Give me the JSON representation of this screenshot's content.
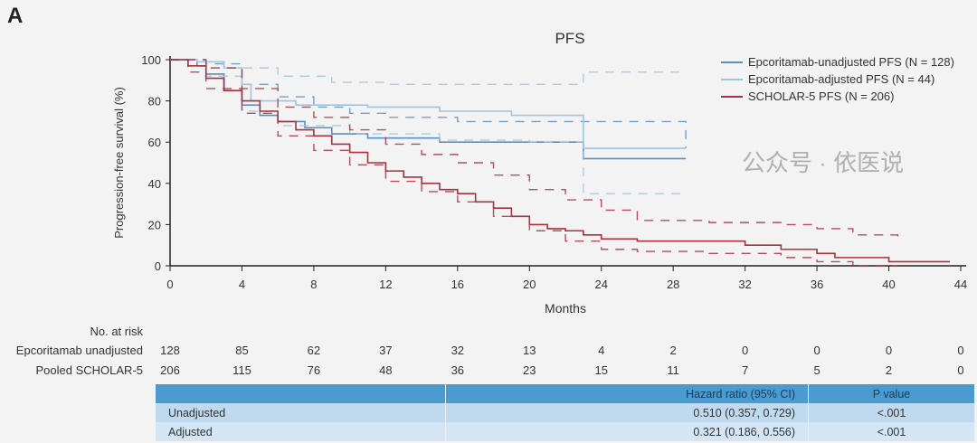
{
  "panel_label": "A",
  "chart_data": {
    "type": "line",
    "title": "PFS",
    "xlabel": "Months",
    "ylabel": "Progression-free survival (%)",
    "xlim": [
      0,
      44
    ],
    "ylim": [
      0,
      100
    ],
    "xticks": [
      0,
      4,
      8,
      12,
      16,
      20,
      24,
      28,
      32,
      36,
      40,
      44
    ],
    "yticks": [
      0,
      20,
      40,
      60,
      80,
      100
    ],
    "legend_position": "top-right",
    "series": [
      {
        "name": "Epcoritamab-unadjusted PFS (N = 128)",
        "color": "#5b8fc0",
        "x": [
          0,
          1.5,
          2,
          3,
          4,
          5,
          6,
          7.5,
          9,
          11,
          15,
          23,
          28.7
        ],
        "y": [
          100,
          97,
          93,
          85,
          78,
          73,
          70,
          67,
          64,
          62,
          60,
          52,
          52
        ],
        "ci_upper": {
          "x": [
            0,
            2,
            4,
            6,
            8,
            10,
            12,
            16,
            23,
            28.7
          ],
          "y": [
            100,
            98,
            88,
            82,
            77,
            74,
            72,
            70,
            70,
            57
          ]
        },
        "ci_lower": null
      },
      {
        "name": "Epcoritamab-adjusted PFS (N = 44)",
        "color": "#9fc4df",
        "x": [
          0,
          1.5,
          3,
          4,
          4.5,
          7,
          11,
          15,
          19,
          23,
          28.7
        ],
        "y": [
          100,
          99,
          96,
          88,
          80,
          78,
          77,
          75,
          73,
          57,
          57
        ],
        "ci_upper": {
          "x": [
            0,
            2,
            3,
            6,
            9,
            12,
            23,
            28.7
          ],
          "y": [
            100,
            99,
            96,
            92,
            89,
            88,
            94,
            94
          ]
        },
        "ci_lower": {
          "x": [
            0,
            2,
            4,
            6,
            10,
            15,
            20,
            23,
            28.7
          ],
          "y": [
            100,
            92,
            75,
            68,
            64,
            61,
            60,
            35,
            35
          ]
        }
      },
      {
        "name": "SCHOLAR-5 PFS (N = 206)",
        "color": "#a8323e",
        "x": [
          0,
          1,
          2,
          3,
          4,
          5,
          6,
          7,
          8,
          9,
          10,
          11,
          12,
          13,
          14,
          15,
          16,
          17,
          18,
          19,
          20,
          21,
          22,
          23,
          24,
          26,
          30,
          32,
          34,
          36,
          37,
          40,
          43.4
        ],
        "y": [
          100,
          97,
          91,
          85,
          80,
          75,
          70,
          66,
          63,
          59,
          55,
          50,
          46,
          43,
          40,
          37,
          35,
          31,
          28,
          24,
          20,
          18,
          17,
          15,
          13,
          12,
          12,
          10,
          8,
          6,
          4,
          2,
          2
        ],
        "ci_upper": {
          "x": [
            0,
            1,
            2,
            4,
            6,
            8,
            10,
            12,
            14,
            16,
            18,
            20,
            22,
            24,
            26,
            30,
            34,
            36,
            38,
            40.5
          ],
          "y": [
            100,
            100,
            96,
            86,
            77,
            72,
            66,
            59,
            54,
            50,
            44,
            37,
            32,
            27,
            22,
            21,
            20,
            18,
            15,
            12
          ]
        },
        "ci_lower": {
          "x": [
            0,
            1,
            2,
            4,
            6,
            8,
            10,
            12,
            14,
            16,
            18,
            20,
            22,
            24,
            26,
            30,
            34,
            36,
            38,
            40.5
          ],
          "y": [
            100,
            94,
            86,
            74,
            63,
            56,
            49,
            41,
            36,
            31,
            24,
            17,
            12,
            8,
            7,
            6,
            4,
            2,
            0,
            0
          ]
        }
      }
    ]
  },
  "risk_table": {
    "header": "No. at risk",
    "rows": [
      {
        "label": "Epcoritamab unadjusted",
        "values": [
          "128",
          "85",
          "62",
          "37",
          "32",
          "13",
          "4",
          "2",
          "0",
          "0",
          "0",
          "0"
        ]
      },
      {
        "label": "Pooled SCHOLAR-5",
        "values": [
          "206",
          "115",
          "76",
          "48",
          "36",
          "23",
          "15",
          "11",
          "7",
          "5",
          "2",
          "0"
        ]
      }
    ]
  },
  "hr_table": {
    "header": [
      "",
      "Hazard ratio (95% CI)",
      "P value"
    ],
    "rows": [
      [
        "Unadjusted",
        "0.510 (0.357, 0.729)",
        "<.001"
      ],
      [
        "Adjusted",
        "0.321 (0.186, 0.556)",
        "<.001"
      ]
    ]
  },
  "watermark": "公众号 · 依医说"
}
